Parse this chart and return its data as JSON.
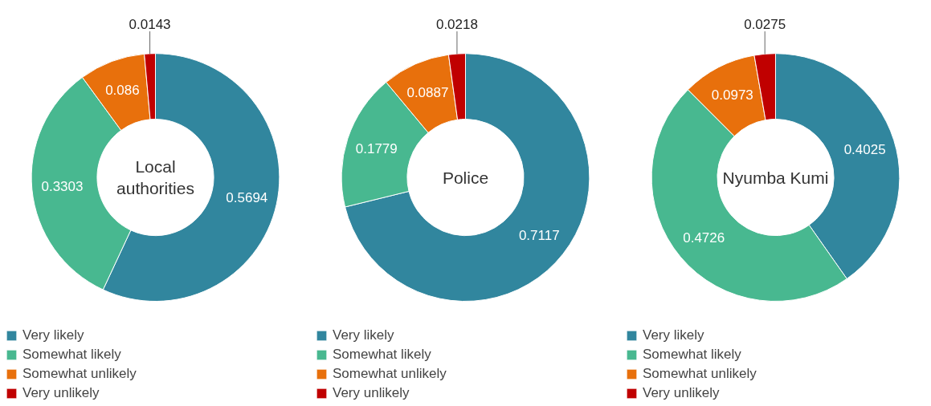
{
  "chart_data": [
    {
      "type": "donut",
      "title": "Local authorities",
      "categories": [
        "Very likely",
        "Somewhat likely",
        "Somewhat unlikely",
        "Very unlikely"
      ],
      "values": [
        0.5694,
        0.3303,
        0.086,
        0.0143
      ],
      "colors": [
        "#31869e",
        "#48b890",
        "#e8700c",
        "#c00000"
      ],
      "data_labels": true,
      "legend": "bottom"
    },
    {
      "type": "donut",
      "title": "Police",
      "categories": [
        "Very likely",
        "Somewhat likely",
        "Somewhat unlikely",
        "Very unlikely"
      ],
      "values": [
        0.7117,
        0.1779,
        0.0887,
        0.0218
      ],
      "colors": [
        "#31869e",
        "#48b890",
        "#e8700c",
        "#c00000"
      ],
      "data_labels": true,
      "legend": "bottom"
    },
    {
      "type": "donut",
      "title": "Nyumba Kumi",
      "categories": [
        "Very likely",
        "Somewhat likely",
        "Somewhat unlikely",
        "Very unlikely"
      ],
      "values": [
        0.4025,
        0.4726,
        0.0973,
        0.0275
      ],
      "colors": [
        "#31869e",
        "#48b890",
        "#e8700c",
        "#c00000"
      ],
      "data_labels": true,
      "legend": "bottom"
    }
  ]
}
